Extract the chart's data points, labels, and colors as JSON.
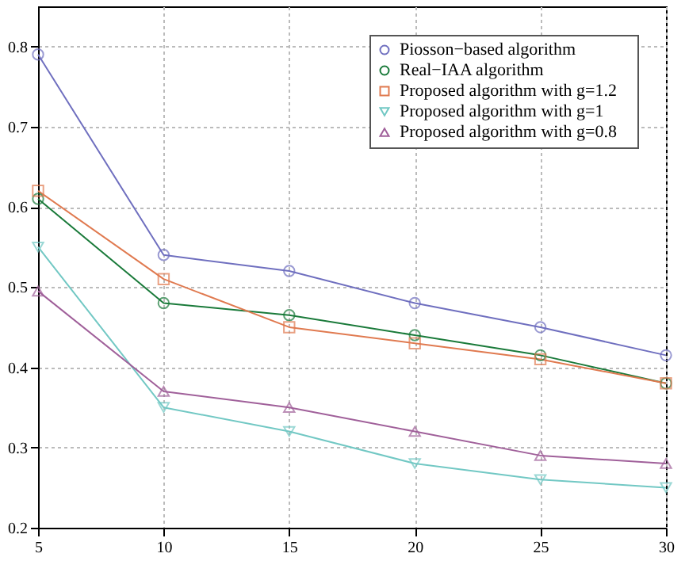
{
  "chart_data": {
    "type": "line",
    "x": [
      5,
      10,
      15,
      20,
      25,
      30
    ],
    "xlim": [
      5,
      30
    ],
    "xticks": [
      5,
      10,
      15,
      20,
      25,
      30
    ],
    "ylim": [
      0.2,
      0.85
    ],
    "yticks": [
      0.2,
      0.3,
      0.4,
      0.5,
      0.6,
      0.7,
      0.8
    ],
    "grid": true,
    "legend": "top right",
    "line_style": "solid",
    "series": [
      {
        "name": "Piosson−based algorithm",
        "color": "#6f6fbf",
        "marker": "circle",
        "values": [
          0.79,
          0.54,
          0.52,
          0.48,
          0.45,
          0.415
        ]
      },
      {
        "name": "Real−IAA algorithm",
        "color": "#1a7a3a",
        "marker": "circle",
        "values": [
          0.61,
          0.48,
          0.465,
          0.44,
          0.415,
          0.38
        ]
      },
      {
        "name": "Proposed algorithm with    g=1.2",
        "color": "#e07a50",
        "marker": "square",
        "values": [
          0.62,
          0.51,
          0.45,
          0.43,
          0.41,
          0.38
        ]
      },
      {
        "name": "Proposed algorithm with    g=1",
        "color": "#72c8c4",
        "marker": "triangle-down",
        "values": [
          0.55,
          0.35,
          0.32,
          0.28,
          0.26,
          0.25
        ]
      },
      {
        "name": "Proposed algorithm with    g=0.8",
        "color": "#a0609a",
        "marker": "triangle",
        "values": [
          0.495,
          0.37,
          0.35,
          0.32,
          0.29,
          0.28
        ]
      }
    ]
  }
}
